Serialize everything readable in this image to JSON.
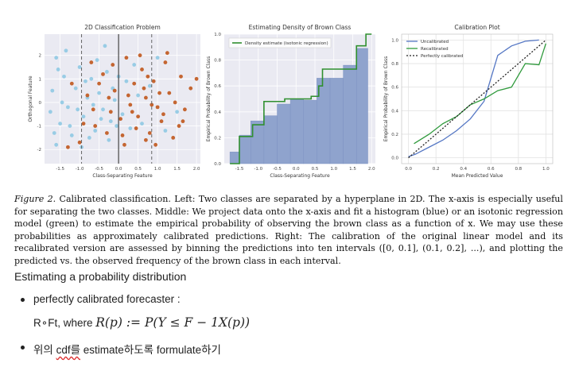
{
  "chart_data": [
    {
      "type": "scatter",
      "title": "2D Classification Problem",
      "xlabel": "Class-Separating Feature",
      "ylabel": "Orthogonal Feature",
      "xlim": [
        -1.9,
        2.1
      ],
      "ylim": [
        -2.6,
        2.9
      ],
      "xticks": [
        "-1.5",
        "-1.0",
        "-0.5",
        "0.0",
        "0.5",
        "1.0",
        "1.5",
        "2.0"
      ],
      "yticks": [
        "-2",
        "-1",
        "0",
        "1",
        "2"
      ],
      "separator_x": 0.0,
      "dashed_x": [
        -0.95,
        0.85
      ],
      "series": [
        {
          "color": "#8fc9e3",
          "points": [
            [
              -1.6,
              1.9
            ],
            [
              -1.4,
              1.1
            ],
            [
              -1.7,
              0.5
            ],
            [
              -1.3,
              -0.2
            ],
            [
              -1.5,
              -0.9
            ],
            [
              -1.2,
              -1.4
            ],
            [
              -1.6,
              -1.8
            ],
            [
              -1.1,
              0.6
            ],
            [
              -1.0,
              1.5
            ],
            [
              -0.9,
              -0.6
            ],
            [
              -0.8,
              0.2
            ],
            [
              -0.7,
              1.0
            ],
            [
              -0.6,
              -1.2
            ],
            [
              -0.5,
              0.4
            ],
            [
              -0.4,
              -0.3
            ],
            [
              -0.3,
              1.3
            ],
            [
              -0.2,
              -0.8
            ],
            [
              -0.1,
              0.1
            ],
            [
              0.1,
              -0.5
            ],
            [
              0.2,
              0.9
            ],
            [
              0.3,
              -1.1
            ],
            [
              0.5,
              0.3
            ],
            [
              -1.35,
              2.2
            ],
            [
              -1.75,
              -0.4
            ],
            [
              -0.95,
              -1.9
            ],
            [
              -0.55,
              1.8
            ],
            [
              -0.25,
              -1.6
            ],
            [
              -1.45,
              0.0
            ],
            [
              -0.65,
              -0.1
            ],
            [
              0.4,
              1.6
            ],
            [
              -1.25,
              -1.0
            ],
            [
              -0.85,
              0.9
            ],
            [
              -1.55,
              1.4
            ],
            [
              -0.45,
              -0.7
            ],
            [
              0.0,
              1.1
            ],
            [
              -1.05,
              -0.3
            ],
            [
              -0.15,
              0.6
            ],
            [
              -0.75,
              -1.5
            ],
            [
              0.6,
              -0.9
            ],
            [
              0.8,
              0.7
            ],
            [
              1.2,
              -1.2
            ],
            [
              1.5,
              -0.4
            ],
            [
              1.0,
              1.9
            ],
            [
              -0.35,
              2.4
            ],
            [
              -1.65,
              -1.3
            ],
            [
              -0.05,
              -1.0
            ]
          ]
        },
        {
          "color": "#c0571c",
          "points": [
            [
              1.6,
              1.1
            ],
            [
              1.3,
              0.4
            ],
            [
              1.7,
              -0.3
            ],
            [
              1.1,
              -0.8
            ],
            [
              1.4,
              -1.5
            ],
            [
              1.2,
              1.7
            ],
            [
              0.9,
              0.9
            ],
            [
              1.0,
              -0.2
            ],
            [
              0.8,
              -1.3
            ],
            [
              0.7,
              0.2
            ],
            [
              0.6,
              1.4
            ],
            [
              0.5,
              -0.6
            ],
            [
              0.4,
              0.8
            ],
            [
              0.3,
              -0.1
            ],
            [
              0.2,
              1.9
            ],
            [
              0.1,
              -1.4
            ],
            [
              -0.1,
              0.5
            ],
            [
              -0.2,
              -0.4
            ],
            [
              -0.4,
              1.2
            ],
            [
              -0.6,
              -1.0
            ],
            [
              -0.8,
              0.3
            ],
            [
              -1.0,
              -1.7
            ],
            [
              1.85,
              0.6
            ],
            [
              1.55,
              -1.0
            ],
            [
              1.25,
              2.1
            ],
            [
              0.95,
              -1.8
            ],
            [
              0.65,
              0.6
            ],
            [
              0.45,
              -1.1
            ],
            [
              0.25,
              0.3
            ],
            [
              0.05,
              -0.7
            ],
            [
              -0.3,
              -1.3
            ],
            [
              -0.5,
              0.8
            ],
            [
              -0.7,
              1.7
            ],
            [
              -0.9,
              -0.9
            ],
            [
              -1.2,
              0.8
            ],
            [
              1.45,
              0.0
            ],
            [
              1.05,
              0.4
            ],
            [
              0.75,
              1.1
            ],
            [
              0.35,
              -0.4
            ],
            [
              -0.15,
              1.6
            ],
            [
              0.15,
              -1.8
            ],
            [
              1.65,
              -0.8
            ],
            [
              0.55,
              2.0
            ],
            [
              -0.65,
              -0.3
            ],
            [
              1.15,
              -0.5
            ],
            [
              0.85,
              -0.1
            ],
            [
              2.0,
              1.0
            ],
            [
              -1.3,
              -1.9
            ],
            [
              -0.25,
              0.2
            ],
            [
              0.7,
              -1.6
            ]
          ]
        }
      ]
    },
    {
      "type": "bar",
      "title": "Estimating Density of Brown Class",
      "xlabel": "Class-Separating Feature",
      "ylabel": "Empirical Probability of Brown Class",
      "xlim": [
        -1.9,
        2.1
      ],
      "ylim": [
        0.0,
        1.0
      ],
      "xticks": [
        "-1.5",
        "-1.0",
        "-0.5",
        "0.0",
        "0.5",
        "1.0",
        "1.5",
        "2.0"
      ],
      "yticks": [
        "0.0",
        "0.2",
        "0.4",
        "0.6",
        "0.8",
        "1.0"
      ],
      "histogram": {
        "color": "#8fa3cd",
        "bin_edges": [
          -1.75,
          -1.5,
          -1.2,
          -0.85,
          -0.5,
          -0.15,
          0.2,
          0.55,
          0.9,
          1.25,
          1.6,
          1.9
        ],
        "values": [
          0.09,
          0.22,
          0.33,
          0.37,
          0.46,
          0.5,
          0.49,
          0.66,
          0.66,
          0.76,
          0.89
        ]
      },
      "legend": "Density estimate (isotonic regression)",
      "legend_position": "top-left",
      "isotonic": {
        "color": "#2f8f2f",
        "x": [
          -1.75,
          -1.5,
          -1.5,
          -1.15,
          -1.15,
          -0.85,
          -0.85,
          -0.3,
          -0.3,
          0.4,
          0.4,
          0.6,
          0.6,
          0.7,
          0.7,
          1.6,
          1.6,
          1.85,
          1.85,
          2.0
        ],
        "y": [
          0.0,
          0.0,
          0.21,
          0.21,
          0.3,
          0.3,
          0.48,
          0.48,
          0.5,
          0.5,
          0.52,
          0.52,
          0.6,
          0.6,
          0.73,
          0.73,
          0.91,
          0.91,
          1.0,
          1.0
        ]
      }
    },
    {
      "type": "line",
      "title": "Calibration Plot",
      "xlabel": "Mean Predicted Value",
      "ylabel": "Empirical Probability of Brown Class",
      "xlim": [
        -0.05,
        1.05
      ],
      "ylim": [
        -0.05,
        1.05
      ],
      "xticks": [
        "0.0",
        "0.2",
        "0.4",
        "0.6",
        "0.8",
        "1.0"
      ],
      "yticks": [
        "0.0",
        "0.2",
        "0.4",
        "0.6",
        "0.8",
        "1.0"
      ],
      "legend_position": "top-left",
      "series": [
        {
          "name": "Uncalibrated",
          "color": "#5577c4",
          "dash": false,
          "x": [
            0.0,
            0.05,
            0.15,
            0.25,
            0.35,
            0.45,
            0.55,
            0.65,
            0.75,
            0.85,
            0.95
          ],
          "y": [
            0.01,
            0.03,
            0.09,
            0.15,
            0.23,
            0.33,
            0.48,
            0.87,
            0.95,
            0.99,
            1.0
          ]
        },
        {
          "name": "Recalibrated",
          "color": "#2f9a3c",
          "dash": false,
          "x": [
            0.04,
            0.15,
            0.25,
            0.35,
            0.45,
            0.55,
            0.65,
            0.75,
            0.85,
            0.95,
            1.0
          ],
          "y": [
            0.12,
            0.2,
            0.29,
            0.35,
            0.45,
            0.5,
            0.57,
            0.6,
            0.8,
            0.79,
            0.97
          ]
        },
        {
          "name": "Perfectly calibrated",
          "color": "#222222",
          "dash": true,
          "x": [
            0.0,
            1.0
          ],
          "y": [
            0.0,
            1.0
          ]
        }
      ]
    }
  ],
  "caption": {
    "label": "Figure 2.",
    "text": " Calibrated classification. Left: Two classes are separated by a hyperplane in 2D. The x-axis is especially useful for separating the two classes. Middle: We project data onto the x-axis and fit a histogram (blue) or an isotonic regression model (green) to estimate the empirical probability of observing the brown class as a function of x. We may use these probabilities as approximately calibrated predictions. Right: The calibration of the original linear model and its recalibrated version are assessed by binning the predictions into ten intervals ([0, 0.1], (0.1, 0.2], ...), and plotting the predicted vs. the observed frequency of the brown class in each interval."
  },
  "notes": {
    "heading": "Estimating a probability distribution",
    "bullet1": "perfectly calibrated forecaster :",
    "formula_prefix": "R∘Ft, where ",
    "formula": "R(p) := P(Y ≤ F − 1X(p))",
    "bullet2_underlined": "cdf를",
    "bullet2_rest": " estimate하도록 formulate하기",
    "bullet2_prefix": "위의 "
  }
}
